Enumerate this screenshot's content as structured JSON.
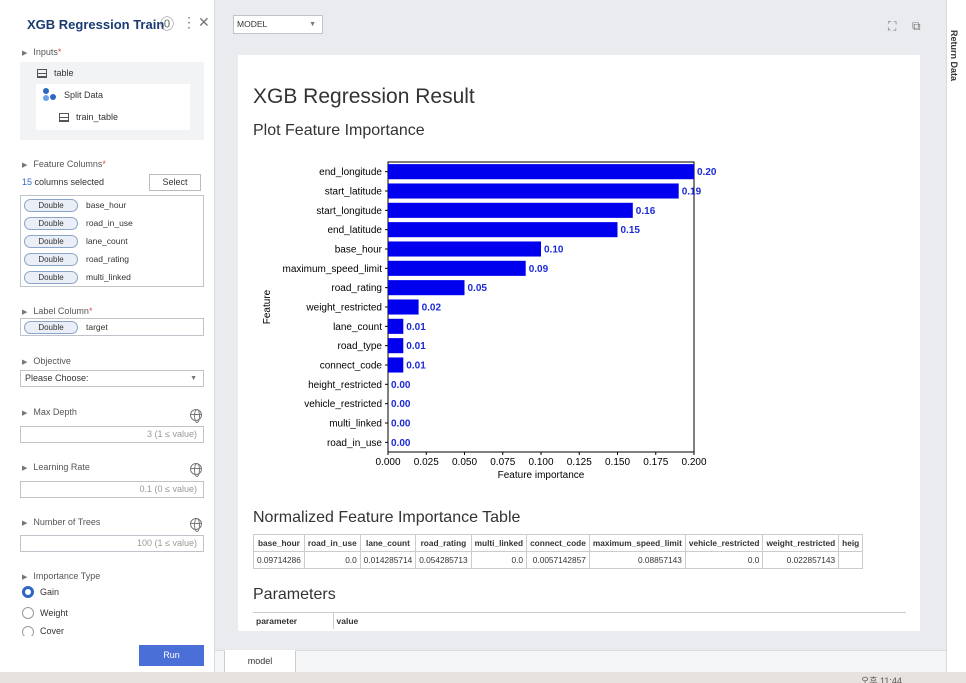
{
  "panel": {
    "title": "XGB Regression Train",
    "inputs_label": "Inputs",
    "inputs_tree": [
      "table",
      "Split Data",
      "train_table"
    ],
    "feature_columns_label": "Feature Columns",
    "selected_count": "15",
    "selected_suffix": " columns selected",
    "select_button": "Select",
    "columns": [
      {
        "type": "Double",
        "name": "base_hour"
      },
      {
        "type": "Double",
        "name": "road_in_use"
      },
      {
        "type": "Double",
        "name": "lane_count"
      },
      {
        "type": "Double",
        "name": "road_rating"
      },
      {
        "type": "Double",
        "name": "multi_linked"
      }
    ],
    "label_column_label": "Label Column",
    "label_column": {
      "type": "Double",
      "name": "target"
    },
    "objective_label": "Objective",
    "objective_value": "Please Choose:",
    "max_depth_label": "Max Depth",
    "max_depth_placeholder": "3 (1 ≤ value)",
    "learning_rate_label": "Learning Rate",
    "learning_rate_placeholder": "0.1 (0 ≤ value)",
    "num_trees_label": "Number of Trees",
    "num_trees_placeholder": "100 (1 ≤ value)",
    "importance_type_label": "Importance Type",
    "importance_options": [
      "Gain",
      "Weight",
      "Cover"
    ],
    "importance_selected": "Gain",
    "run_button": "Run"
  },
  "toolbar": {
    "model_select": "MODEL"
  },
  "report": {
    "title": "XGB Regression Result",
    "plot_heading": "Plot Feature Importance",
    "table_heading": "Normalized Feature Importance Table",
    "params_heading": "Parameters",
    "table_headers": [
      "base_hour",
      "road_in_use",
      "lane_count",
      "road_rating",
      "multi_linked",
      "connect_code",
      "maximum_speed_limit",
      "vehicle_restricted",
      "weight_restricted",
      "heig"
    ],
    "table_row": [
      "0.09714286",
      "0.0",
      "0.014285714",
      "0.054285713",
      "0.0",
      "0.0057142857",
      "0.08857143",
      "0.0",
      "0.022857143",
      ""
    ],
    "params_headers": [
      "parameter",
      "value"
    ]
  },
  "chart_data": {
    "type": "bar",
    "orientation": "horizontal",
    "title": "",
    "xlabel": "Feature importance",
    "ylabel": "Feature",
    "xlim": [
      0,
      0.2
    ],
    "xticks": [
      "0.000",
      "0.025",
      "0.050",
      "0.075",
      "0.100",
      "0.125",
      "0.150",
      "0.175",
      "0.200"
    ],
    "categories": [
      "end_longitude",
      "start_latitude",
      "start_longitude",
      "end_latitude",
      "base_hour",
      "maximum_speed_limit",
      "road_rating",
      "weight_restricted",
      "lane_count",
      "road_type",
      "connect_code",
      "height_restricted",
      "vehicle_restricted",
      "multi_linked",
      "road_in_use"
    ],
    "values": [
      0.2,
      0.19,
      0.16,
      0.15,
      0.1,
      0.09,
      0.05,
      0.02,
      0.01,
      0.01,
      0.01,
      0.0,
      0.0,
      0.0,
      0.0
    ],
    "labels": [
      "0.20",
      "0.19",
      "0.16",
      "0.15",
      "0.10",
      "0.09",
      "0.05",
      "0.02",
      "0.01",
      "0.01",
      "0.01",
      "0.00",
      "0.00",
      "0.00",
      "0.00"
    ],
    "bar_color": "#0000ee",
    "label_color": "#1c2ad6"
  },
  "bottom": {
    "tab": "model",
    "right_sidebar": "Return Data",
    "clock": "오후 11:44"
  }
}
